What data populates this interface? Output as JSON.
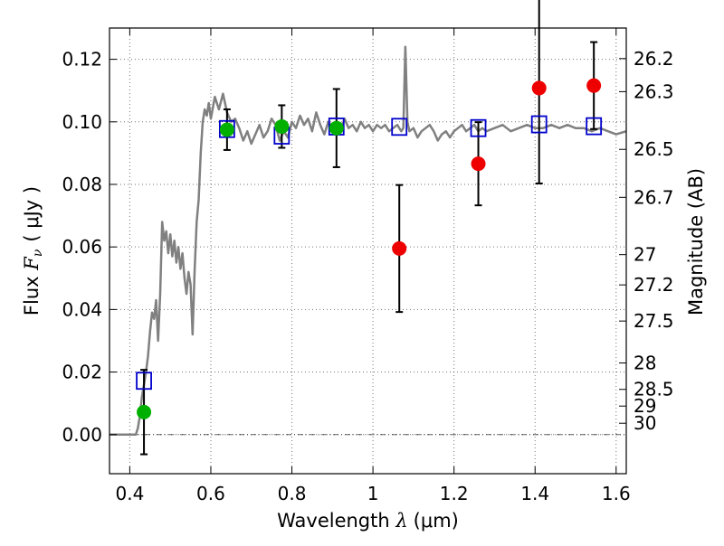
{
  "chart_data": {
    "type": "scatter",
    "xlabel_prefix": "Wavelength ",
    "xlabel_lambda": "λ",
    "xlabel_unit": "(μm)",
    "ylabel_prefix": "Flux ",
    "ylabel_fnu_main": "F",
    "ylabel_fnu_sub": "ν",
    "ylabel_unit": "( μJy )",
    "y2label": "Magnitude (AB)",
    "xlim": [
      0.35,
      1.625
    ],
    "ylim": [
      -0.0125,
      0.13
    ],
    "x_ticks": [
      0.4,
      0.6,
      0.8,
      1.0,
      1.2,
      1.4,
      1.6
    ],
    "x_tick_labels": [
      "0.4",
      "0.6",
      "0.8",
      "1",
      "1.2",
      "1.4",
      "1.6"
    ],
    "y_ticks": [
      0.0,
      0.02,
      0.04,
      0.06,
      0.08,
      0.1,
      0.12
    ],
    "y_tick_labels": [
      "0.00",
      "0.02",
      "0.04",
      "0.06",
      "0.08",
      "0.10",
      "0.12"
    ],
    "y2_ticks": [
      26.2,
      26.3,
      26.5,
      26.7,
      27,
      27.2,
      27.5,
      28,
      28.5,
      29,
      30
    ],
    "y2_tick_labels": [
      "26.2",
      "26.3",
      "26.5",
      "26.7",
      "27",
      "27.2",
      "27.5",
      "28",
      "28.5",
      "29",
      "30"
    ],
    "grid": true,
    "colors": {
      "model": "#808080",
      "model_photometry": "#0000cc",
      "detected": "#00b000",
      "upper": "#ee0000",
      "errorbar": "#000000"
    },
    "series": [
      {
        "kind": "line",
        "x": [
          0.35,
          0.41,
          0.415,
          0.42,
          0.425,
          0.43,
          0.435,
          0.44,
          0.445,
          0.45,
          0.455,
          0.46,
          0.465,
          0.47,
          0.475,
          0.48,
          0.485,
          0.49,
          0.495,
          0.5,
          0.505,
          0.51,
          0.515,
          0.52,
          0.525,
          0.53,
          0.535,
          0.54,
          0.545,
          0.55,
          0.555,
          0.56,
          0.565,
          0.57,
          0.575,
          0.58,
          0.585,
          0.59,
          0.595,
          0.6,
          0.61,
          0.62,
          0.63,
          0.64,
          0.65,
          0.66,
          0.67,
          0.68,
          0.69,
          0.7,
          0.71,
          0.72,
          0.73,
          0.74,
          0.75,
          0.76,
          0.77,
          0.78,
          0.79,
          0.8,
          0.81,
          0.82,
          0.83,
          0.84,
          0.85,
          0.86,
          0.87,
          0.88,
          0.89,
          0.9,
          0.91,
          0.92,
          0.93,
          0.94,
          0.95,
          0.96,
          0.97,
          0.98,
          0.99,
          1.0,
          1.01,
          1.02,
          1.03,
          1.04,
          1.05,
          1.06,
          1.07,
          1.075,
          1.08,
          1.085,
          1.09,
          1.1,
          1.11,
          1.12,
          1.13,
          1.14,
          1.15,
          1.16,
          1.17,
          1.18,
          1.19,
          1.2,
          1.21,
          1.22,
          1.23,
          1.24,
          1.25,
          1.26,
          1.27,
          1.28,
          1.3,
          1.32,
          1.34,
          1.36,
          1.38,
          1.4,
          1.42,
          1.44,
          1.46,
          1.48,
          1.5,
          1.52,
          1.54,
          1.56,
          1.58,
          1.6,
          1.625
        ],
        "y": [
          0.0,
          0.0,
          0.0,
          0.002,
          0.006,
          0.012,
          0.016,
          0.02,
          0.025,
          0.033,
          0.039,
          0.037,
          0.043,
          0.03,
          0.045,
          0.068,
          0.062,
          0.065,
          0.058,
          0.064,
          0.057,
          0.062,
          0.055,
          0.06,
          0.053,
          0.058,
          0.05,
          0.045,
          0.052,
          0.048,
          0.032,
          0.052,
          0.068,
          0.075,
          0.09,
          0.1,
          0.104,
          0.102,
          0.106,
          0.101,
          0.108,
          0.104,
          0.109,
          0.103,
          0.1,
          0.101,
          0.098,
          0.094,
          0.097,
          0.093,
          0.096,
          0.099,
          0.095,
          0.097,
          0.101,
          0.099,
          0.094,
          0.097,
          0.095,
          0.1,
          0.098,
          0.102,
          0.099,
          0.101,
          0.097,
          0.103,
          0.099,
          0.096,
          0.1,
          0.098,
          0.099,
          0.097,
          0.101,
          0.098,
          0.099,
          0.097,
          0.1,
          0.098,
          0.099,
          0.097,
          0.099,
          0.098,
          0.099,
          0.097,
          0.098,
          0.099,
          0.097,
          0.098,
          0.124,
          0.1,
          0.097,
          0.098,
          0.095,
          0.097,
          0.098,
          0.099,
          0.097,
          0.094,
          0.096,
          0.097,
          0.095,
          0.097,
          0.098,
          0.099,
          0.097,
          0.098,
          0.099,
          0.097,
          0.098,
          0.097,
          0.098,
          0.099,
          0.097,
          0.098,
          0.099,
          0.098,
          0.098,
          0.099,
          0.098,
          0.099,
          0.098,
          0.098,
          0.097,
          0.098,
          0.097,
          0.096,
          0.097
        ]
      },
      {
        "kind": "model_photometry",
        "marker": "open-square",
        "x": [
          0.435,
          0.64,
          0.775,
          0.91,
          1.065,
          1.26,
          1.41,
          1.545
        ],
        "y": [
          0.0172,
          0.0977,
          0.0956,
          0.0985,
          0.0984,
          0.098,
          0.0992,
          0.0986
        ]
      },
      {
        "kind": "detected",
        "marker": "filled-circle",
        "x": [
          0.435,
          0.64,
          0.775,
          0.91
        ],
        "y": [
          0.0072,
          0.0975,
          0.0985,
          0.098
        ],
        "yerr": [
          0.0135,
          0.0065,
          0.0068,
          0.0125
        ]
      },
      {
        "kind": "upper",
        "marker": "filled-circle",
        "x": [
          1.065,
          1.26,
          1.41,
          1.545
        ],
        "y": [
          0.0595,
          0.0866,
          0.1108,
          0.1116
        ],
        "yerr": [
          0.0203,
          0.0133,
          0.0305,
          0.0139
        ]
      }
    ]
  }
}
